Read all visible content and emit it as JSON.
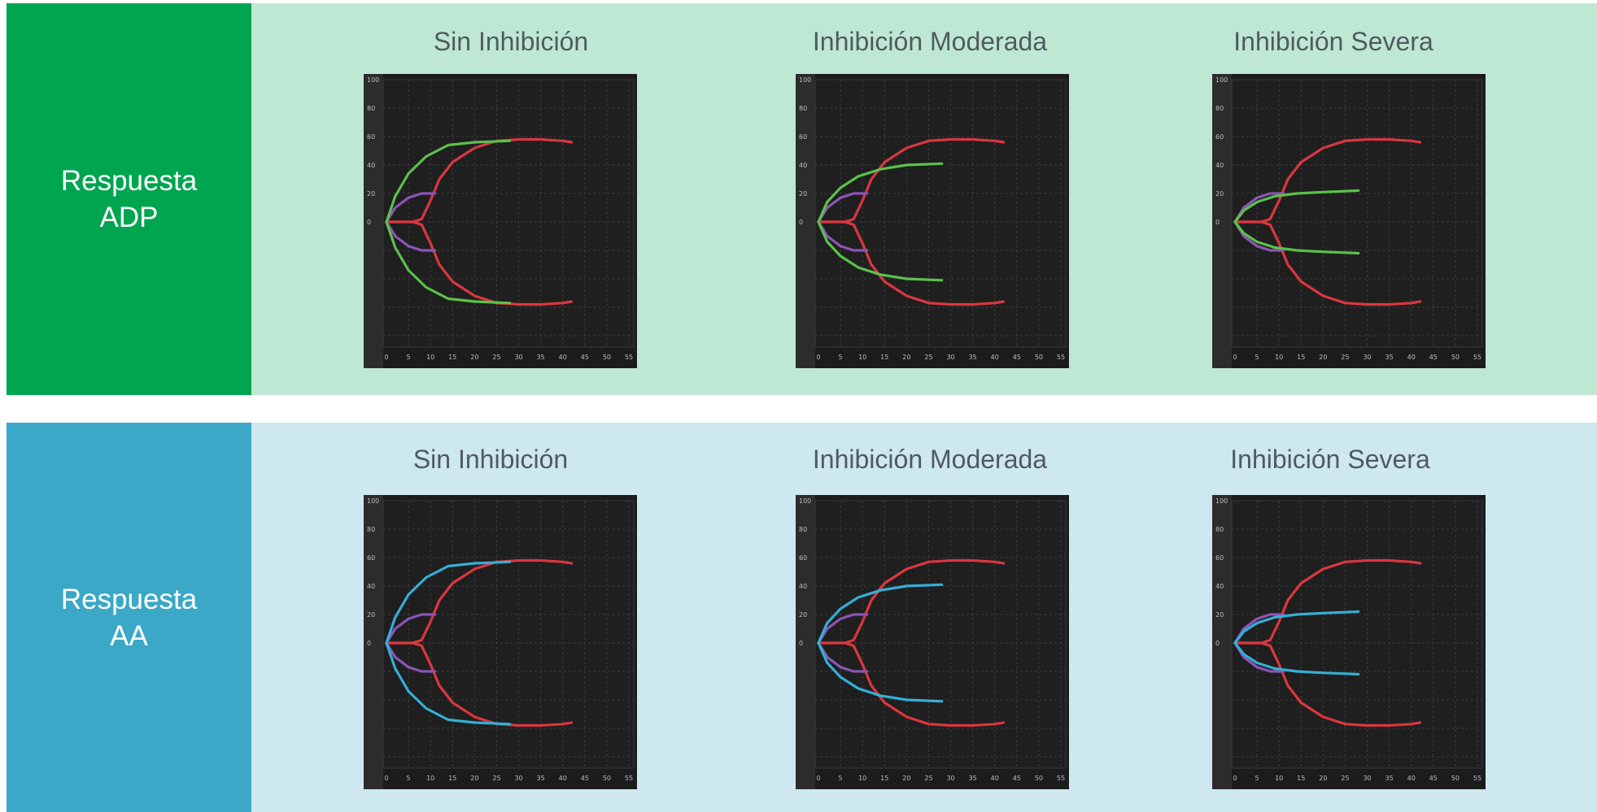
{
  "rows": [
    {
      "label_line1": "Respuesta",
      "label_line2": "ADP",
      "label_bg": "#00a550",
      "content_bg": "#bfe8d4",
      "titles": [
        "Sin Inhibición",
        "Inhibición Moderada",
        "Inhibición Severa"
      ]
    },
    {
      "label_line1": "Respuesta",
      "label_line2": "AA",
      "label_bg": "#3aa8c6",
      "content_bg": "#cde8ef",
      "titles": [
        "Sin Inhibición",
        "Inhibición Moderada",
        "Inhibición Severa"
      ]
    }
  ],
  "chart_data": [
    {
      "type": "line",
      "title": "Sin Inhibición",
      "xticks": [
        0,
        5,
        10,
        15,
        20,
        25,
        30,
        35,
        40,
        45,
        50,
        55
      ],
      "yticks": [
        100,
        80,
        60,
        40,
        20,
        0
      ],
      "xlim": [
        0,
        55
      ],
      "ylim": [
        -100,
        100
      ],
      "grid": true,
      "series": [
        {
          "color": "#d9373f",
          "points": [
            [
              0,
              0
            ],
            [
              6,
              0
            ],
            [
              8,
              2
            ],
            [
              10,
              15
            ],
            [
              12,
              30
            ],
            [
              15,
              42
            ],
            [
              20,
              52
            ],
            [
              25,
              57
            ],
            [
              30,
              58
            ],
            [
              35,
              58
            ],
            [
              40,
              57
            ],
            [
              42,
              56
            ]
          ]
        },
        {
          "color": "#8b55b5",
          "points": [
            [
              0,
              0
            ],
            [
              2,
              10
            ],
            [
              5,
              17
            ],
            [
              8,
              20
            ],
            [
              11,
              20
            ]
          ]
        },
        {
          "color": "#5bc14b",
          "points": [
            [
              0,
              0
            ],
            [
              2,
              18
            ],
            [
              5,
              34
            ],
            [
              9,
              46
            ],
            [
              14,
              54
            ],
            [
              20,
              56
            ],
            [
              28,
              57
            ]
          ]
        }
      ]
    },
    {
      "type": "line",
      "title": "Inhibición Moderada",
      "xticks": [
        0,
        5,
        10,
        15,
        20,
        25,
        30,
        35,
        40,
        45,
        50,
        55
      ],
      "yticks": [
        100,
        80,
        60,
        40,
        20,
        0
      ],
      "xlim": [
        0,
        55
      ],
      "ylim": [
        -100,
        100
      ],
      "grid": true,
      "series": [
        {
          "color": "#d9373f",
          "points": [
            [
              0,
              0
            ],
            [
              6,
              0
            ],
            [
              8,
              2
            ],
            [
              10,
              15
            ],
            [
              12,
              30
            ],
            [
              15,
              42
            ],
            [
              20,
              52
            ],
            [
              25,
              57
            ],
            [
              30,
              58
            ],
            [
              35,
              58
            ],
            [
              40,
              57
            ],
            [
              42,
              56
            ]
          ]
        },
        {
          "color": "#8b55b5",
          "points": [
            [
              0,
              0
            ],
            [
              2,
              10
            ],
            [
              5,
              17
            ],
            [
              8,
              20
            ],
            [
              11,
              20
            ]
          ]
        },
        {
          "color": "#5bc14b",
          "points": [
            [
              0,
              0
            ],
            [
              2,
              14
            ],
            [
              5,
              24
            ],
            [
              9,
              32
            ],
            [
              14,
              37
            ],
            [
              20,
              40
            ],
            [
              28,
              41
            ]
          ]
        }
      ]
    },
    {
      "type": "line",
      "title": "Inhibición Severa",
      "xticks": [
        0,
        5,
        10,
        15,
        20,
        25,
        30,
        35,
        40,
        45,
        50,
        55
      ],
      "yticks": [
        100,
        80,
        60,
        40,
        20,
        0
      ],
      "xlim": [
        0,
        55
      ],
      "ylim": [
        -100,
        100
      ],
      "grid": true,
      "series": [
        {
          "color": "#d9373f",
          "points": [
            [
              0,
              0
            ],
            [
              6,
              0
            ],
            [
              8,
              2
            ],
            [
              10,
              15
            ],
            [
              12,
              30
            ],
            [
              15,
              42
            ],
            [
              20,
              52
            ],
            [
              25,
              57
            ],
            [
              30,
              58
            ],
            [
              35,
              58
            ],
            [
              40,
              57
            ],
            [
              42,
              56
            ]
          ]
        },
        {
          "color": "#8b55b5",
          "points": [
            [
              0,
              0
            ],
            [
              2,
              10
            ],
            [
              5,
              17
            ],
            [
              8,
              20
            ],
            [
              11,
              20
            ]
          ]
        },
        {
          "color": "#5bc14b",
          "points": [
            [
              0,
              0
            ],
            [
              2,
              8
            ],
            [
              5,
              14
            ],
            [
              9,
              18
            ],
            [
              14,
              20
            ],
            [
              20,
              21
            ],
            [
              28,
              22
            ]
          ]
        }
      ]
    },
    {
      "type": "line",
      "title": "Sin Inhibición",
      "xticks": [
        0,
        5,
        10,
        15,
        20,
        25,
        30,
        35,
        40,
        45,
        50,
        55
      ],
      "yticks": [
        100,
        80,
        60,
        40,
        20,
        0
      ],
      "xlim": [
        0,
        55
      ],
      "ylim": [
        -100,
        100
      ],
      "grid": true,
      "series": [
        {
          "color": "#d9373f",
          "points": [
            [
              0,
              0
            ],
            [
              6,
              0
            ],
            [
              8,
              2
            ],
            [
              10,
              15
            ],
            [
              12,
              30
            ],
            [
              15,
              42
            ],
            [
              20,
              52
            ],
            [
              25,
              57
            ],
            [
              30,
              58
            ],
            [
              35,
              58
            ],
            [
              40,
              57
            ],
            [
              42,
              56
            ]
          ]
        },
        {
          "color": "#8b55b5",
          "points": [
            [
              0,
              0
            ],
            [
              2,
              10
            ],
            [
              5,
              17
            ],
            [
              8,
              20
            ],
            [
              11,
              20
            ]
          ]
        },
        {
          "color": "#36aed6",
          "points": [
            [
              0,
              0
            ],
            [
              2,
              18
            ],
            [
              5,
              34
            ],
            [
              9,
              46
            ],
            [
              14,
              54
            ],
            [
              20,
              56
            ],
            [
              28,
              57
            ]
          ]
        }
      ]
    },
    {
      "type": "line",
      "title": "Inhibición Moderada",
      "xticks": [
        0,
        5,
        10,
        15,
        20,
        25,
        30,
        35,
        40,
        45,
        50,
        55
      ],
      "yticks": [
        100,
        80,
        60,
        40,
        20,
        0
      ],
      "xlim": [
        0,
        55
      ],
      "ylim": [
        -100,
        100
      ],
      "grid": true,
      "series": [
        {
          "color": "#d9373f",
          "points": [
            [
              0,
              0
            ],
            [
              6,
              0
            ],
            [
              8,
              2
            ],
            [
              10,
              15
            ],
            [
              12,
              30
            ],
            [
              15,
              42
            ],
            [
              20,
              52
            ],
            [
              25,
              57
            ],
            [
              30,
              58
            ],
            [
              35,
              58
            ],
            [
              40,
              57
            ],
            [
              42,
              56
            ]
          ]
        },
        {
          "color": "#8b55b5",
          "points": [
            [
              0,
              0
            ],
            [
              2,
              10
            ],
            [
              5,
              17
            ],
            [
              8,
              20
            ],
            [
              11,
              20
            ]
          ]
        },
        {
          "color": "#36aed6",
          "points": [
            [
              0,
              0
            ],
            [
              2,
              14
            ],
            [
              5,
              24
            ],
            [
              9,
              32
            ],
            [
              14,
              37
            ],
            [
              20,
              40
            ],
            [
              28,
              41
            ]
          ]
        }
      ]
    },
    {
      "type": "line",
      "title": "Inhibición Severa",
      "xticks": [
        0,
        5,
        10,
        15,
        20,
        25,
        30,
        35,
        40,
        45,
        50,
        55
      ],
      "yticks": [
        100,
        80,
        60,
        40,
        20,
        0
      ],
      "xlim": [
        0,
        55
      ],
      "ylim": [
        -100,
        100
      ],
      "grid": true,
      "series": [
        {
          "color": "#d9373f",
          "points": [
            [
              0,
              0
            ],
            [
              6,
              0
            ],
            [
              8,
              2
            ],
            [
              10,
              15
            ],
            [
              12,
              30
            ],
            [
              15,
              42
            ],
            [
              20,
              52
            ],
            [
              25,
              57
            ],
            [
              30,
              58
            ],
            [
              35,
              58
            ],
            [
              40,
              57
            ],
            [
              42,
              56
            ]
          ]
        },
        {
          "color": "#8b55b5",
          "points": [
            [
              0,
              0
            ],
            [
              2,
              10
            ],
            [
              5,
              17
            ],
            [
              8,
              20
            ],
            [
              11,
              20
            ]
          ]
        },
        {
          "color": "#36aed6",
          "points": [
            [
              0,
              0
            ],
            [
              2,
              8
            ],
            [
              5,
              14
            ],
            [
              9,
              18
            ],
            [
              14,
              20
            ],
            [
              20,
              21
            ],
            [
              28,
              22
            ]
          ]
        }
      ]
    }
  ]
}
